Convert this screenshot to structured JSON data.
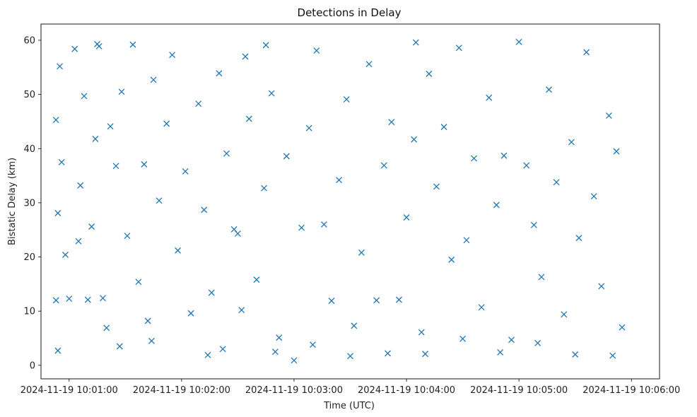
{
  "chart_data": {
    "type": "scatter",
    "title": "Detections in Delay",
    "xlabel": "Time (UTC)",
    "ylabel": "Bistatic Delay (km)",
    "marker": "x",
    "color": "#1f77b4",
    "grid": false,
    "legend": "none",
    "x_range": [
      "2024-11-19 10:00:45",
      "2024-11-19 10:06:15"
    ],
    "ylim": [
      -2.5,
      63
    ],
    "x_ticks": [
      "2024-11-19 10:01:00",
      "2024-11-19 10:02:00",
      "2024-11-19 10:03:00",
      "2024-11-19 10:04:00",
      "2024-11-19 10:05:00",
      "2024-11-19 10:06:00"
    ],
    "y_ticks": [
      0,
      10,
      20,
      30,
      40,
      50,
      60
    ],
    "series": [
      {
        "values_note_x": "time",
        "x": [
          "2024-11-19 10:00:53",
          "2024-11-19 10:00:53",
          "2024-11-19 10:00:54",
          "2024-11-19 10:00:55",
          "2024-11-19 10:00:56",
          "2024-11-19 10:00:58",
          "2024-11-19 10:01:00",
          "2024-11-19 10:01:03",
          "2024-11-19 10:01:06",
          "2024-11-19 10:01:08",
          "2024-11-19 10:01:10",
          "2024-11-19 10:01:12",
          "2024-11-19 10:01:14",
          "2024-11-19 10:01:16",
          "2024-11-19 10:01:18",
          "2024-11-19 10:01:20",
          "2024-11-19 10:01:22",
          "2024-11-19 10:01:25",
          "2024-11-19 10:01:28",
          "2024-11-19 10:01:31",
          "2024-11-19 10:01:34",
          "2024-11-19 10:01:37",
          "2024-11-19 10:01:40",
          "2024-11-19 10:01:42",
          "2024-11-19 10:01:45",
          "2024-11-19 10:01:48",
          "2024-11-19 10:01:52",
          "2024-11-19 10:01:55",
          "2024-11-19 10:01:58",
          "2024-11-19 10:02:02",
          "2024-11-19 10:02:05",
          "2024-11-19 10:02:09",
          "2024-11-19 10:02:12",
          "2024-11-19 10:02:16",
          "2024-11-19 10:02:20",
          "2024-11-19 10:02:24",
          "2024-11-19 10:02:28",
          "2024-11-19 10:02:30",
          "2024-11-19 10:02:32",
          "2024-11-19 10:02:34",
          "2024-11-19 10:02:36",
          "2024-11-19 10:02:40",
          "2024-11-19 10:02:44",
          "2024-11-19 10:02:48",
          "2024-11-19 10:02:52",
          "2024-11-19 10:02:56",
          "2024-11-19 10:03:00",
          "2024-11-19 10:03:04",
          "2024-11-19 10:03:08",
          "2024-11-19 10:03:12",
          "2024-11-19 10:03:16",
          "2024-11-19 10:03:20",
          "2024-11-19 10:03:24",
          "2024-11-19 10:03:28",
          "2024-11-19 10:03:32",
          "2024-11-19 10:03:36",
          "2024-11-19 10:03:40",
          "2024-11-19 10:03:44",
          "2024-11-19 10:03:48",
          "2024-11-19 10:03:52",
          "2024-11-19 10:03:56",
          "2024-11-19 10:04:00",
          "2024-11-19 10:04:04",
          "2024-11-19 10:04:08",
          "2024-11-19 10:04:12",
          "2024-11-19 10:04:16",
          "2024-11-19 10:04:20",
          "2024-11-19 10:04:24",
          "2024-11-19 10:04:28",
          "2024-11-19 10:04:32",
          "2024-11-19 10:04:36",
          "2024-11-19 10:04:40",
          "2024-11-19 10:04:44",
          "2024-11-19 10:04:48",
          "2024-11-19 10:04:52",
          "2024-11-19 10:04:56",
          "2024-11-19 10:05:00",
          "2024-11-19 10:05:04",
          "2024-11-19 10:05:08",
          "2024-11-19 10:05:12",
          "2024-11-19 10:05:16",
          "2024-11-19 10:05:20",
          "2024-11-19 10:05:24",
          "2024-11-19 10:05:28",
          "2024-11-19 10:05:32",
          "2024-11-19 10:05:36",
          "2024-11-19 10:05:40",
          "2024-11-19 10:05:44",
          "2024-11-19 10:05:48",
          "2024-11-19 10:05:52",
          "2024-11-19 10:05:55",
          "2024-11-19 10:00:54",
          "2024-11-19 10:01:05",
          "2024-11-19 10:01:27",
          "2024-11-19 10:02:14",
          "2024-11-19 10:02:50",
          "2024-11-19 10:03:30",
          "2024-11-19 10:04:10",
          "2024-11-19 10:04:50",
          "2024-11-19 10:05:30",
          "2024-11-19 10:01:44",
          "2024-11-19 10:02:22",
          "2024-11-19 10:03:10",
          "2024-11-19 10:03:50",
          "2024-11-19 10:04:30",
          "2024-11-19 10:05:10",
          "2024-11-19 10:05:50",
          "2024-11-19 10:01:15",
          "2024-11-19 10:02:45",
          "2024-11-19 10:04:05"
        ],
        "y": [
          12.0,
          45.3,
          28.1,
          55.2,
          37.5,
          20.4,
          12.3,
          58.4,
          33.2,
          49.7,
          12.1,
          25.6,
          41.8,
          58.9,
          12.4,
          6.9,
          44.1,
          36.8,
          50.5,
          23.9,
          59.2,
          15.4,
          37.1,
          8.2,
          52.7,
          30.4,
          44.6,
          57.3,
          21.2,
          35.8,
          9.6,
          48.3,
          28.7,
          13.4,
          53.9,
          39.1,
          25.1,
          24.3,
          10.2,
          57.0,
          45.5,
          15.8,
          32.7,
          50.2,
          5.1,
          38.6,
          0.9,
          25.4,
          43.8,
          58.1,
          26.0,
          11.9,
          34.2,
          49.1,
          7.3,
          20.8,
          55.6,
          12.0,
          36.9,
          44.9,
          12.1,
          27.3,
          41.7,
          6.1,
          53.8,
          33.0,
          44.0,
          19.5,
          58.6,
          23.1,
          38.2,
          10.7,
          49.4,
          29.6,
          38.7,
          4.7,
          59.7,
          36.9,
          25.9,
          16.3,
          50.9,
          33.8,
          9.4,
          41.2,
          23.5,
          57.8,
          31.2,
          14.6,
          46.1,
          39.5,
          7.0,
          2.7,
          22.9,
          3.5,
          1.9,
          2.5,
          1.7,
          2.1,
          2.4,
          2.0,
          4.5,
          3.0,
          3.8,
          2.2,
          4.9,
          4.1,
          1.8,
          59.3,
          59.1,
          59.6
        ]
      }
    ]
  }
}
